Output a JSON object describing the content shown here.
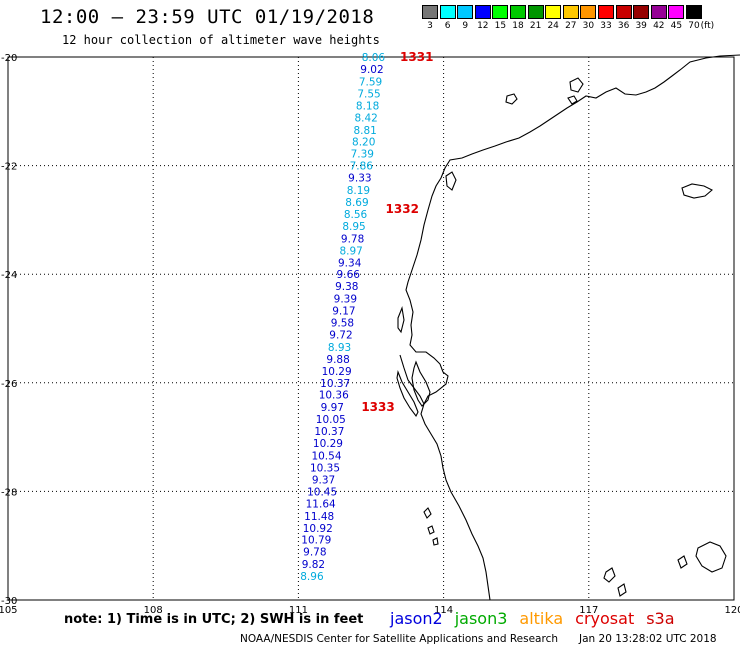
{
  "header": {
    "title": "12:00 — 23:59 UTC 01/19/2018",
    "subtitle": "12 hour collection of altimeter wave heights"
  },
  "legend": {
    "bins": [
      {
        "label": "3",
        "color": "#777777"
      },
      {
        "label": "6",
        "color": "#00ffff"
      },
      {
        "label": "9",
        "color": "#00c8ff"
      },
      {
        "label": "12",
        "color": "#0000ff"
      },
      {
        "label": "15",
        "color": "#00ff00"
      },
      {
        "label": "18",
        "color": "#00c800"
      },
      {
        "label": "21",
        "color": "#009600"
      },
      {
        "label": "24",
        "color": "#ffff00"
      },
      {
        "label": "27",
        "color": "#ffc800"
      },
      {
        "label": "30",
        "color": "#ff9600"
      },
      {
        "label": "33",
        "color": "#ff0000"
      },
      {
        "label": "36",
        "color": "#c80000"
      },
      {
        "label": "39",
        "color": "#960000"
      },
      {
        "label": "42",
        "color": "#960096"
      },
      {
        "label": "45",
        "color": "#ff00ff"
      },
      {
        "label": "70",
        "color": "#000000"
      }
    ],
    "unit": "(ft)"
  },
  "axes": {
    "lon_labels": [
      "105",
      "108",
      "111",
      "114",
      "117",
      "120"
    ],
    "lat_labels": [
      "-20",
      "-22",
      "-24",
      "-26",
      "-28",
      "-30"
    ]
  },
  "wave_heights": [
    {
      "value": "8.06",
      "lat": -20.0,
      "lon": 112.55,
      "color": "#00aadd"
    },
    {
      "value": "9.02",
      "lat": -20.22,
      "lon": 112.52,
      "color": "#0000cc"
    },
    {
      "value": "7.59",
      "lat": -20.45,
      "lon": 112.49,
      "color": "#00aadd"
    },
    {
      "value": "7.55",
      "lat": -20.67,
      "lon": 112.46,
      "color": "#00aadd"
    },
    {
      "value": "8.18",
      "lat": -20.89,
      "lon": 112.43,
      "color": "#00aadd"
    },
    {
      "value": "8.42",
      "lat": -21.11,
      "lon": 112.4,
      "color": "#00aadd"
    },
    {
      "value": "8.81",
      "lat": -21.34,
      "lon": 112.38,
      "color": "#00aadd"
    },
    {
      "value": "8.20",
      "lat": -21.56,
      "lon": 112.35,
      "color": "#00aadd"
    },
    {
      "value": "7.39",
      "lat": -21.78,
      "lon": 112.32,
      "color": "#00aadd"
    },
    {
      "value": "7.86",
      "lat": -22.0,
      "lon": 112.3,
      "color": "#00aadd"
    },
    {
      "value": "9.33",
      "lat": -22.22,
      "lon": 112.27,
      "color": "#0000cc"
    },
    {
      "value": "8.19",
      "lat": -22.45,
      "lon": 112.24,
      "color": "#00aadd"
    },
    {
      "value": "8.69",
      "lat": -22.67,
      "lon": 112.21,
      "color": "#00aadd"
    },
    {
      "value": "8.56",
      "lat": -22.89,
      "lon": 112.18,
      "color": "#00aadd"
    },
    {
      "value": "8.95",
      "lat": -23.11,
      "lon": 112.15,
      "color": "#00aadd"
    },
    {
      "value": "9.78",
      "lat": -23.34,
      "lon": 112.12,
      "color": "#0000cc"
    },
    {
      "value": "8.97",
      "lat": -23.56,
      "lon": 112.09,
      "color": "#00aadd"
    },
    {
      "value": "9.34",
      "lat": -23.78,
      "lon": 112.06,
      "color": "#0000cc"
    },
    {
      "value": "9.66",
      "lat": -24.0,
      "lon": 112.03,
      "color": "#0000cc"
    },
    {
      "value": "9.38",
      "lat": -24.22,
      "lon": 112.0,
      "color": "#0000cc"
    },
    {
      "value": "9.39",
      "lat": -24.45,
      "lon": 111.97,
      "color": "#0000cc"
    },
    {
      "value": "9.17",
      "lat": -24.67,
      "lon": 111.94,
      "color": "#0000cc"
    },
    {
      "value": "9.58",
      "lat": -24.89,
      "lon": 111.91,
      "color": "#0000cc"
    },
    {
      "value": "9.72",
      "lat": -25.11,
      "lon": 111.88,
      "color": "#0000cc"
    },
    {
      "value": "8.93",
      "lat": -25.34,
      "lon": 111.85,
      "color": "#00aadd"
    },
    {
      "value": "9.88",
      "lat": -25.56,
      "lon": 111.82,
      "color": "#0000cc"
    },
    {
      "value": "10.29",
      "lat": -25.78,
      "lon": 111.79,
      "color": "#0000cc"
    },
    {
      "value": "10.37",
      "lat": -26.0,
      "lon": 111.76,
      "color": "#0000cc"
    },
    {
      "value": "10.36",
      "lat": -26.22,
      "lon": 111.73,
      "color": "#0000cc"
    },
    {
      "value": "9.97",
      "lat": -26.45,
      "lon": 111.7,
      "color": "#0000cc"
    },
    {
      "value": "10.05",
      "lat": -26.67,
      "lon": 111.67,
      "color": "#0000cc"
    },
    {
      "value": "10.37",
      "lat": -26.89,
      "lon": 111.64,
      "color": "#0000cc"
    },
    {
      "value": "10.29",
      "lat": -27.11,
      "lon": 111.61,
      "color": "#0000cc"
    },
    {
      "value": "10.54",
      "lat": -27.34,
      "lon": 111.58,
      "color": "#0000cc"
    },
    {
      "value": "10.35",
      "lat": -27.56,
      "lon": 111.55,
      "color": "#0000cc"
    },
    {
      "value": "9.37",
      "lat": -27.78,
      "lon": 111.52,
      "color": "#0000cc"
    },
    {
      "value": "10.45",
      "lat": -28.0,
      "lon": 111.49,
      "color": "#0000cc"
    },
    {
      "value": "11.64",
      "lat": -28.22,
      "lon": 111.46,
      "color": "#0000cc"
    },
    {
      "value": "11.48",
      "lat": -28.45,
      "lon": 111.43,
      "color": "#0000cc"
    },
    {
      "value": "10.92",
      "lat": -28.67,
      "lon": 111.4,
      "color": "#0000cc"
    },
    {
      "value": "10.79",
      "lat": -28.89,
      "lon": 111.37,
      "color": "#0000cc"
    },
    {
      "value": "9.78",
      "lat": -29.11,
      "lon": 111.34,
      "color": "#0000cc"
    },
    {
      "value": "9.82",
      "lat": -29.34,
      "lon": 111.31,
      "color": "#0000cc"
    },
    {
      "value": "8.96",
      "lat": -29.56,
      "lon": 111.28,
      "color": "#00aadd"
    }
  ],
  "pass_labels": [
    {
      "value": "1331",
      "lat": -20.0,
      "lon": 113.1
    },
    {
      "value": "1332",
      "lat": -22.8,
      "lon": 112.8
    },
    {
      "value": "1333",
      "lat": -26.45,
      "lon": 112.3
    }
  ],
  "note": "note: 1) Time is in UTC; 2) SWH is in feet",
  "missions": [
    {
      "label": "jason2",
      "color": "#0000dd"
    },
    {
      "label": "jason3",
      "color": "#00aa00"
    },
    {
      "label": "altika",
      "color": "#ff9900"
    },
    {
      "label": "cryosat",
      "color": "#dd0000"
    },
    {
      "label": "s3a",
      "color": "#cc0000"
    }
  ],
  "footer": {
    "credit": "NOAA/NESDIS Center for Satellite Applications and Research",
    "timestamp": "Jan 20 13:28:02 UTC 2018"
  }
}
